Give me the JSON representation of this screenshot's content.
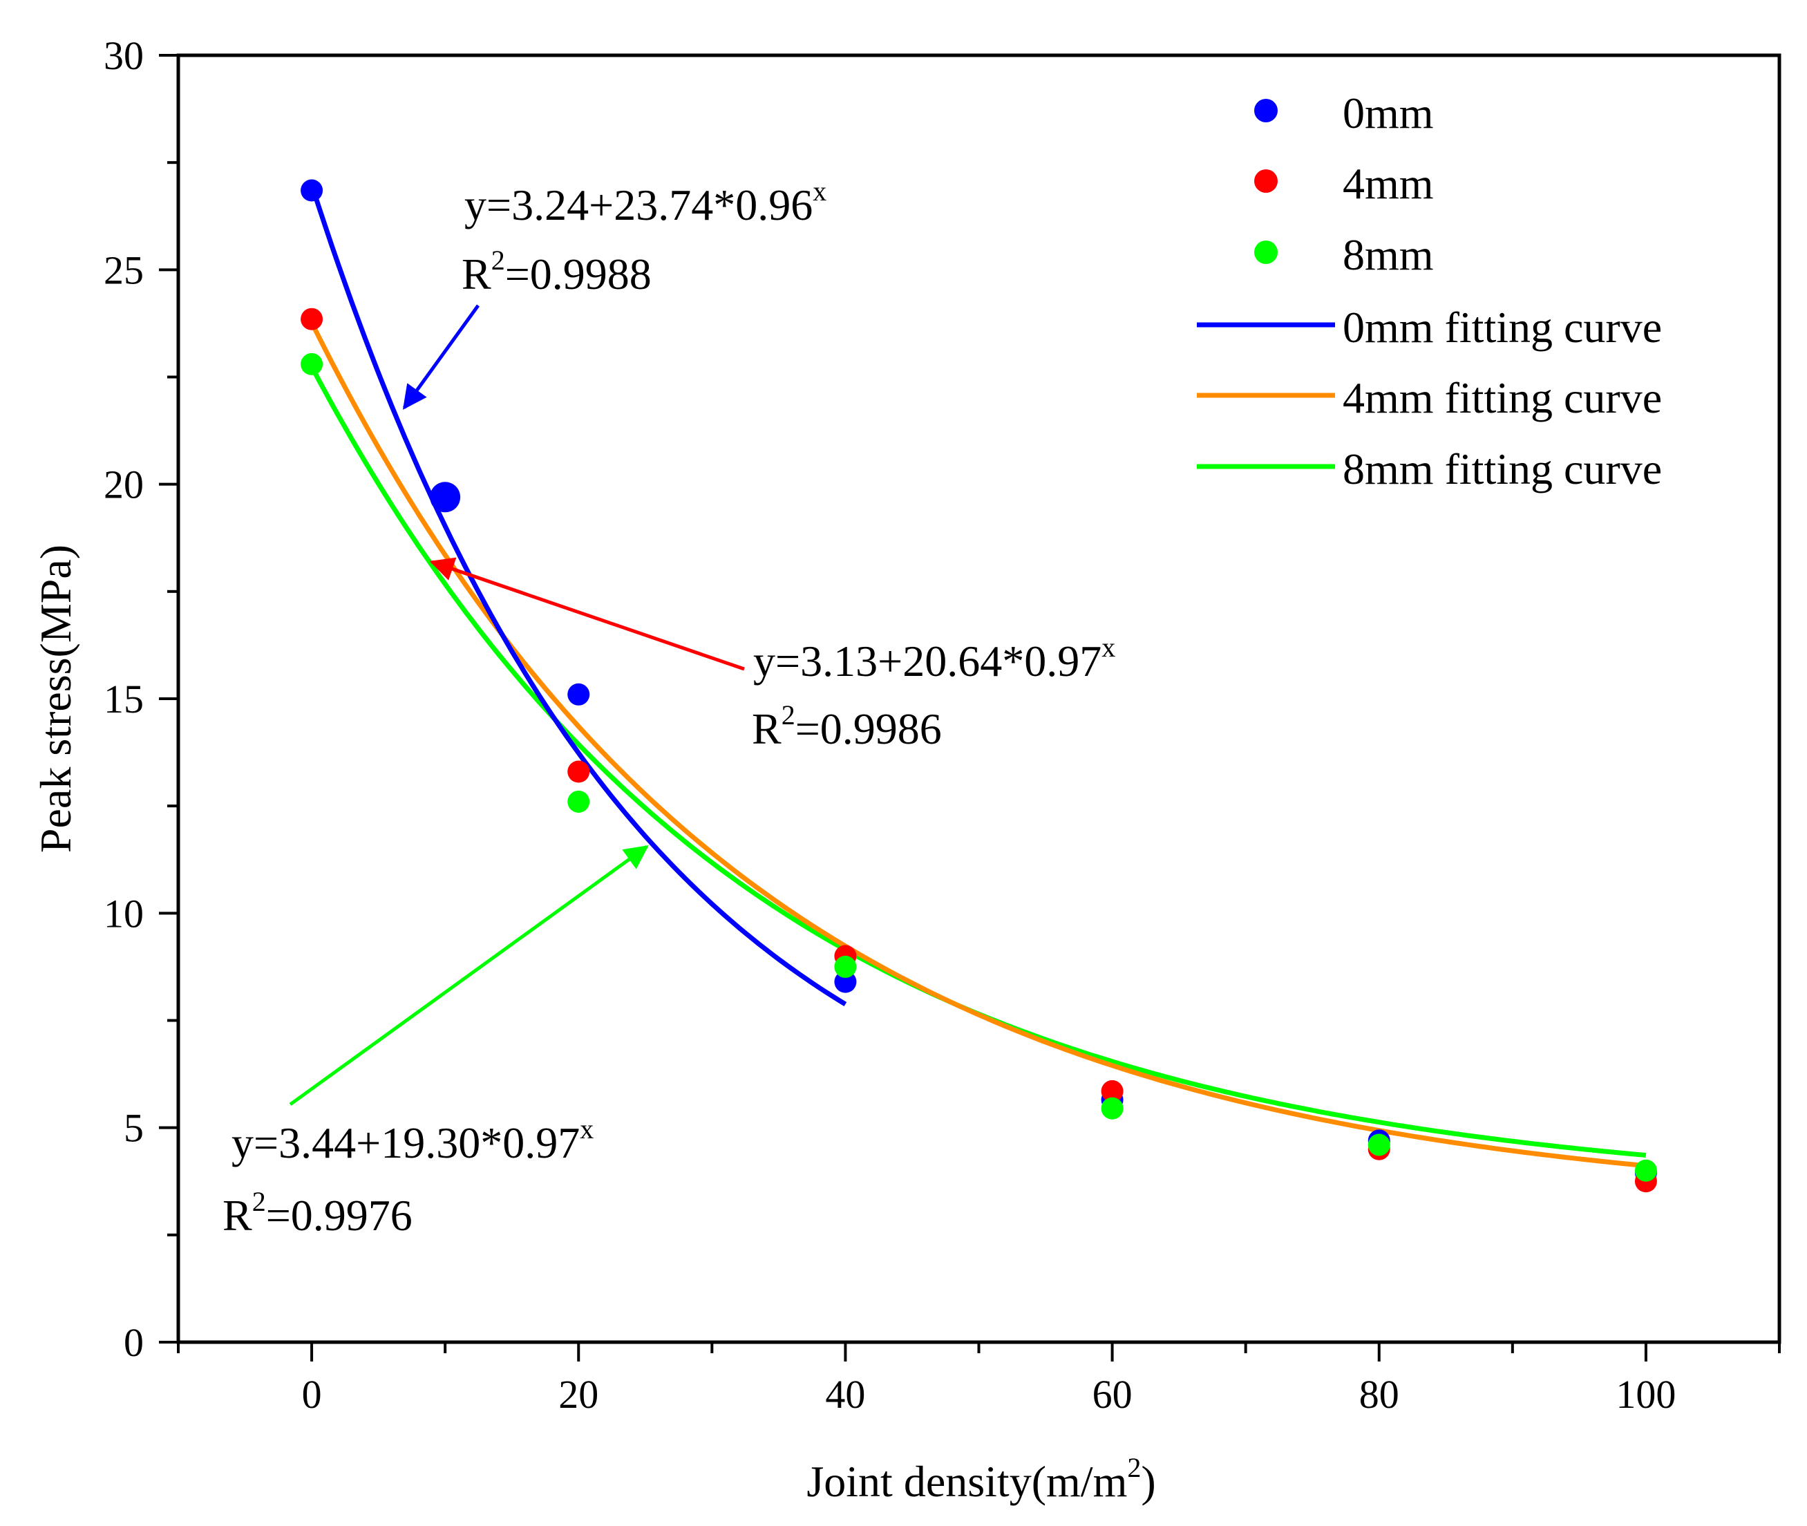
{
  "chart_data": {
    "type": "scatter",
    "xlabel": "Joint density(m/m",
    "xlabel_sup": "2",
    "xlabel_suffix": ")",
    "ylabel": "Peak stress(MPa)",
    "xlim": [
      -10,
      110
    ],
    "ylim": [
      0,
      30
    ],
    "x_ticks": [
      0,
      20,
      40,
      60,
      80,
      100
    ],
    "x_tick_labels": [
      "0",
      "20",
      "40",
      "60",
      "80",
      "100"
    ],
    "y_ticks": [
      0,
      5,
      10,
      15,
      20,
      25,
      30
    ],
    "y_tick_labels": [
      "0",
      "5",
      "10",
      "15",
      "20",
      "25",
      "30"
    ],
    "grid": false,
    "legend_position": "top-right",
    "series": [
      {
        "name": "0mm",
        "kind": "points",
        "color": "#0000ff",
        "x": [
          0,
          10,
          20,
          40,
          60,
          80,
          100
        ],
        "y": [
          26.85,
          19.7,
          15.1,
          8.4,
          5.65,
          4.7,
          3.95
        ]
      },
      {
        "name": "4mm",
        "kind": "points",
        "color": "#ff0000",
        "x": [
          0,
          20,
          40,
          60,
          80,
          100
        ],
        "y": [
          23.85,
          13.3,
          9.0,
          5.85,
          4.5,
          3.75
        ]
      },
      {
        "name": "8mm",
        "kind": "points",
        "color": "#00ff00",
        "x": [
          0,
          20,
          40,
          60,
          80,
          100
        ],
        "y": [
          22.8,
          12.6,
          8.75,
          5.45,
          4.6,
          4.0
        ]
      },
      {
        "name": "0mm fitting curve",
        "kind": "curve",
        "color": "#0000ff",
        "a": 3.24,
        "b": 23.74,
        "c": 0.96,
        "x_range": [
          0,
          40
        ]
      },
      {
        "name": "4mm fitting curve",
        "kind": "curve",
        "color": "#ff8c00",
        "a": 3.13,
        "b": 20.64,
        "c": 0.97,
        "x_range": [
          0,
          100
        ]
      },
      {
        "name": "8mm fitting curve",
        "kind": "curve",
        "color": "#00ff00",
        "a": 3.44,
        "b": 19.3,
        "c": 0.97,
        "x_range": [
          0,
          100
        ]
      }
    ],
    "annotations": [
      {
        "equation": "y=3.24+23.74*0.96",
        "eq_sup": "x",
        "r2_prefix": "R",
        "r2_sup": "2",
        "r2_value": "=0.9988",
        "color": "#0000ff"
      },
      {
        "equation": "y=3.13+20.64*0.97",
        "eq_sup": "x",
        "r2_prefix": "R",
        "r2_sup": "2",
        "r2_value": "=0.9986",
        "color": "#ff0000"
      },
      {
        "equation": "y=3.44+19.30*0.97",
        "eq_sup": "x",
        "r2_prefix": "R",
        "r2_sup": "2",
        "r2_value": "=0.9976",
        "color": "#00ff00"
      }
    ]
  }
}
